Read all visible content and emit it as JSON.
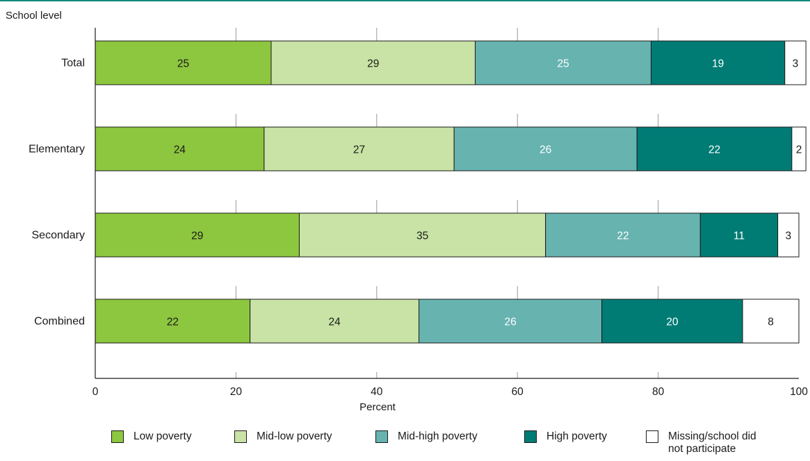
{
  "chart_data": {
    "type": "bar",
    "orientation": "horizontal",
    "stacked": true,
    "categories": [
      "Total",
      "Elementary",
      "Secondary",
      "Combined"
    ],
    "series": [
      {
        "name": "Low poverty",
        "color": "#8dc63f",
        "label_color": "#1a1a1a",
        "values": [
          25,
          24,
          29,
          22
        ]
      },
      {
        "name": "Mid-low poverty",
        "color": "#c8e3a5",
        "label_color": "#1a1a1a",
        "values": [
          29,
          27,
          35,
          24
        ]
      },
      {
        "name": "Mid-high poverty",
        "color": "#67b3b0",
        "label_color": "#ffffff",
        "values": [
          25,
          26,
          22,
          26
        ]
      },
      {
        "name": "High poverty",
        "color": "#007c75",
        "label_color": "#ffffff",
        "values": [
          19,
          22,
          11,
          20
        ]
      },
      {
        "name": "Missing/school did not participate",
        "color": "#ffffff",
        "label_color": "#1a1a1a",
        "values": [
          3,
          2,
          3,
          8
        ]
      }
    ],
    "xlabel": "Percent",
    "ylabel": "School level",
    "xlim": [
      0,
      100
    ],
    "xticks": [
      0,
      20,
      40,
      60,
      80,
      100
    ],
    "grid": "vertical dashed",
    "legend_position": "bottom"
  },
  "legend": {
    "items": [
      {
        "label": "Low poverty",
        "color": "#8dc63f"
      },
      {
        "label": "Mid-low poverty",
        "color": "#c8e3a5"
      },
      {
        "label": "Mid-high poverty",
        "color": "#67b3b0"
      },
      {
        "label": "High poverty",
        "color": "#007c75"
      },
      {
        "label": "Missing/school did not participate",
        "color": "#ffffff"
      }
    ]
  },
  "colors": {
    "accent_rule": "#0f8a7e",
    "axis": "#1a1a1a",
    "grid": "#9a9a9a"
  }
}
